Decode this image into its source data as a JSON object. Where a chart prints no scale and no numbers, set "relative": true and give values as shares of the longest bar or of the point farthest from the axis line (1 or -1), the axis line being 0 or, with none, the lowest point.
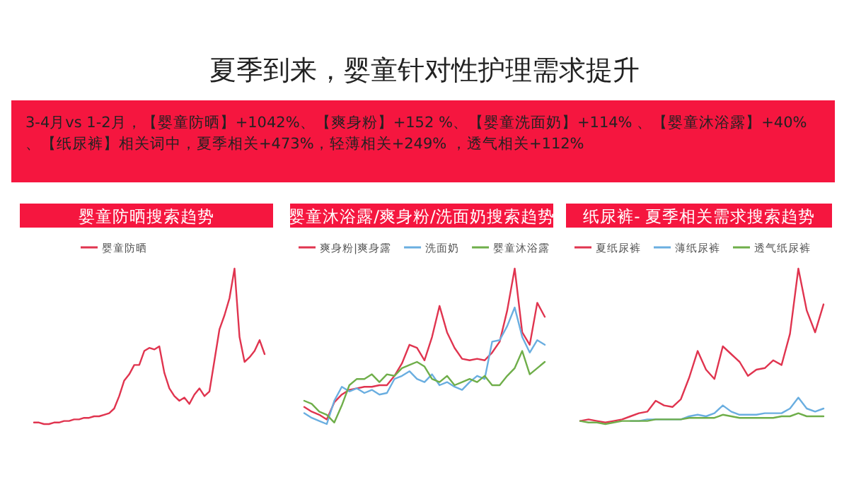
{
  "chart_data": [
    {
      "type": "other",
      "title": "夏季到来，婴童针对性护理需求提升",
      "annotations": [
        "3-4月vs 1-2月，【婴童防晒】+1042%、【爽身粉】+152 %、【婴童洗面奶】+114% 、【婴童沐浴露】+40%、【纸尿裤】相关词中，夏季相关+473%，轻薄相关+249% ，透气相关+112%"
      ]
    },
    {
      "type": "line",
      "title": "婴童防晒搜索趋势",
      "relative": true,
      "legend": "top",
      "grid": false,
      "marker": "none",
      "line_style": "solid",
      "categories": [
        null,
        null,
        null,
        null,
        null,
        null,
        null,
        null,
        null,
        null,
        null,
        null,
        null,
        null,
        null,
        null,
        null,
        null,
        null,
        null,
        null,
        null,
        null,
        null,
        null,
        null,
        null,
        null,
        null,
        null,
        null,
        null,
        null,
        null,
        null,
        null,
        null,
        null,
        null,
        null,
        null,
        null,
        null,
        null,
        null,
        null,
        null
      ],
      "series": [
        {
          "name": "婴童防晒",
          "color": "#e0344f",
          "values": [
            0.01,
            0.01,
            0,
            0,
            0.01,
            0.01,
            0.02,
            0.02,
            0.03,
            0.03,
            0.04,
            0.04,
            0.05,
            0.05,
            0.06,
            0.07,
            0.1,
            0.18,
            0.28,
            0.32,
            0.38,
            0.38,
            0.47,
            0.49,
            0.48,
            0.5,
            0.33,
            0.23,
            0.18,
            0.15,
            0.17,
            0.13,
            0.19,
            0.23,
            0.18,
            0.21,
            0.41,
            0.61,
            0.7,
            0.81,
            1,
            0.56,
            0.4,
            0.43,
            0.47,
            0.54,
            0.45
          ]
        }
      ]
    },
    {
      "type": "line",
      "title": "婴童沐浴露/爽身粉/洗面奶搜索趋势",
      "relative": true,
      "legend": "top",
      "grid": false,
      "marker": "none",
      "line_style": "solid",
      "categories": [
        null,
        null,
        null,
        null,
        null,
        null,
        null,
        null,
        null,
        null,
        null,
        null,
        null,
        null,
        null,
        null,
        null,
        null,
        null,
        null,
        null,
        null,
        null,
        null,
        null,
        null,
        null,
        null,
        null,
        null,
        null,
        null,
        null
      ],
      "series": [
        {
          "name": "爽身粉|爽身露",
          "color": "#e0344f",
          "values": [
            0.11,
            0.08,
            0.06,
            0.03,
            0.14,
            0.19,
            0.22,
            0.23,
            0.24,
            0.24,
            0.25,
            0.25,
            0.31,
            0.39,
            0.51,
            0.49,
            0.41,
            0.56,
            0.76,
            0.59,
            0.49,
            0.42,
            0.41,
            0.42,
            0.41,
            0.46,
            0.53,
            0.73,
            1,
            0.59,
            0.51,
            0.78,
            0.69
          ]
        },
        {
          "name": "洗面奶",
          "color": "#6aaee0",
          "values": [
            0.07,
            0.04,
            0.02,
            0,
            0.15,
            0.24,
            0.21,
            0.23,
            0.2,
            0.22,
            0.19,
            0.2,
            0.29,
            0.31,
            0.34,
            0.29,
            0.27,
            0.32,
            0.25,
            0.27,
            0.24,
            0.22,
            0.27,
            0.31,
            0.29,
            0.53,
            0.54,
            0.63,
            0.75,
            0.56,
            0.46,
            0.54,
            0.51
          ]
        },
        {
          "name": "婴童沐浴露",
          "color": "#6fae4a",
          "values": [
            0.15,
            0.13,
            0.08,
            0.06,
            0.01,
            0.12,
            0.25,
            0.29,
            0.29,
            0.32,
            0.27,
            0.32,
            0.31,
            0.36,
            0.38,
            0.4,
            0.37,
            0.29,
            0.27,
            0.31,
            0.25,
            0.27,
            0.29,
            0.27,
            0.31,
            0.25,
            0.25,
            0.31,
            0.36,
            0.47,
            0.32,
            0.36,
            0.4
          ]
        }
      ]
    },
    {
      "type": "line",
      "title": "纸尿裤- 夏季相关需求搜索趋势",
      "relative": true,
      "legend": "top",
      "grid": false,
      "marker": "none",
      "line_style": "solid",
      "categories": [
        null,
        null,
        null,
        null,
        null,
        null,
        null,
        null,
        null,
        null,
        null,
        null,
        null,
        null,
        null,
        null,
        null,
        null,
        null,
        null,
        null,
        null,
        null,
        null,
        null,
        null,
        null,
        null,
        null,
        null
      ],
      "series": [
        {
          "name": "夏纸尿裤",
          "color": "#e0344f",
          "values": [
            0.02,
            0.03,
            0.02,
            0.01,
            0.02,
            0.03,
            0.05,
            0.07,
            0.08,
            0.15,
            0.12,
            0.11,
            0.16,
            0.3,
            0.47,
            0.35,
            0.29,
            0.5,
            0.45,
            0.4,
            0.31,
            0.35,
            0.36,
            0.41,
            0.38,
            0.58,
            1,
            0.73,
            0.59,
            0.77
          ]
        },
        {
          "name": "薄纸尿裤",
          "color": "#6aaee0",
          "values": [
            null,
            null,
            null,
            null,
            null,
            null,
            0.02,
            0.02,
            0.03,
            0.03,
            0.03,
            0.03,
            0.03,
            0.05,
            0.06,
            0.05,
            0.07,
            0.12,
            0.08,
            0.06,
            0.06,
            0.06,
            0.07,
            0.07,
            0.07,
            0.1,
            0.17,
            0.1,
            0.08,
            0.1
          ]
        },
        {
          "name": "透气纸尿裤",
          "color": "#6fae4a",
          "values": [
            0.02,
            0.01,
            0.01,
            0,
            0.01,
            0.02,
            0.02,
            0.02,
            0.02,
            0.03,
            0.03,
            0.03,
            0.03,
            0.04,
            0.04,
            0.04,
            0.04,
            0.06,
            0.05,
            0.04,
            0.04,
            0.04,
            0.04,
            0.04,
            0.05,
            0.05,
            0.07,
            0.05,
            0.05,
            0.05
          ]
        }
      ]
    }
  ]
}
